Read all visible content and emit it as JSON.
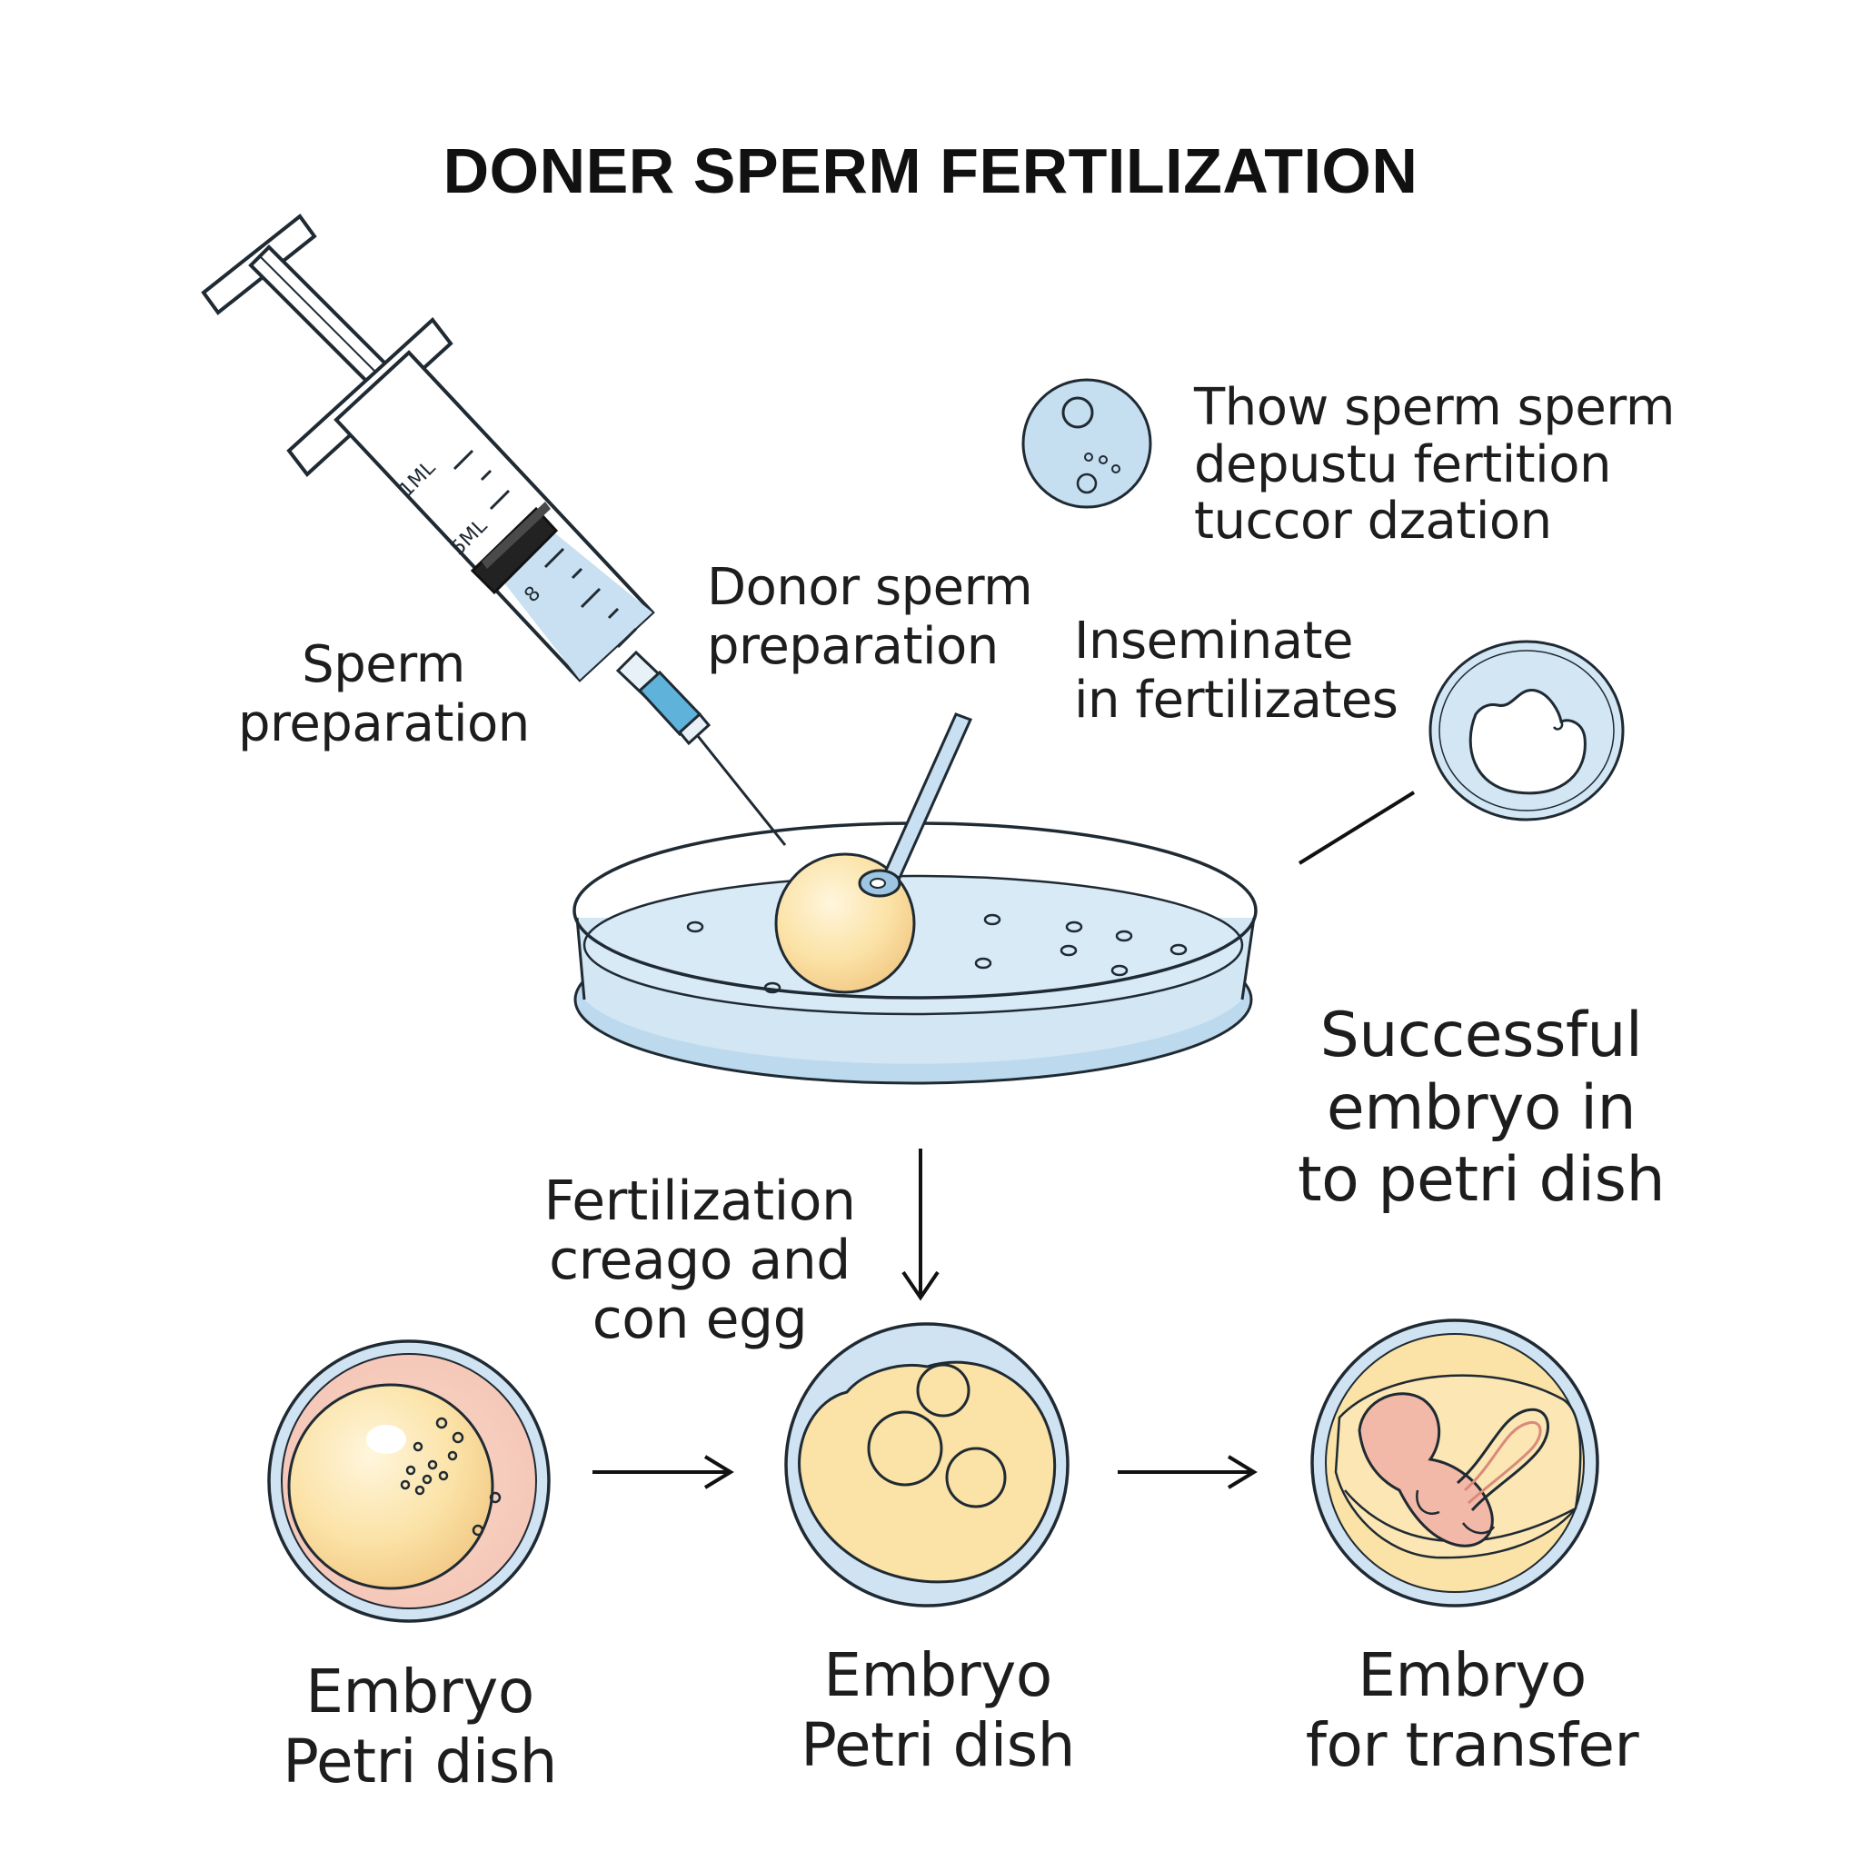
{
  "title": "DONER SPERM FERTILIZATION",
  "labels": {
    "sperm_preparation": "Sperm\npreparation",
    "donor_sperm_preparation": "Donor sperm\npreparation",
    "inseminate": "Inseminate\nin fertilizates",
    "thow_sperm": "Thow sperm sperm\ndepustu fertition\ntuccor dzation",
    "successful_embryo": "Successful\nembryo in\nto petri dish",
    "fertilization_creago": "Fertilization\ncreago and\ncon egg"
  },
  "syringe_marks": [
    "1ML",
    "5ML",
    "8"
  ],
  "captions": {
    "dish_1": "Embryo\nPetri dish",
    "dish_2": "Embryo\nPetri dish",
    "dish_3": "Embryo\nfor transfer"
  },
  "colors": {
    "outline": "#1f2a33",
    "dish_blue": "#d6e8f5",
    "liquid_blue": "#bcd9ee",
    "egg_yellow": "#fbe3a8",
    "egg_pink": "#f7d2c2",
    "embryo_pink": "#f3b9a8"
  },
  "icons": [
    "syringe-icon",
    "petri-dish-icon",
    "pipette-icon",
    "egg-cell-icon",
    "arrow-down-icon",
    "arrow-right-icon"
  ]
}
